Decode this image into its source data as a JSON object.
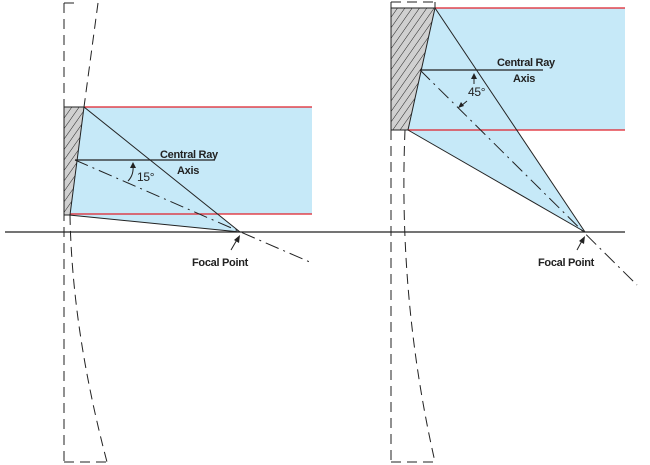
{
  "colors": {
    "beam": "#c6e9f8",
    "beam_edge": "#e0202a",
    "line": "#222222",
    "prism": "#d0d0d0"
  },
  "left": {
    "label_ray": "Central Ray",
    "label_axis": "Axis",
    "angle": "15°",
    "focal": "Focal Point"
  },
  "right": {
    "label_ray": "Central Ray",
    "label_axis": "Axis",
    "angle": "45°",
    "focal": "Focal Point"
  }
}
